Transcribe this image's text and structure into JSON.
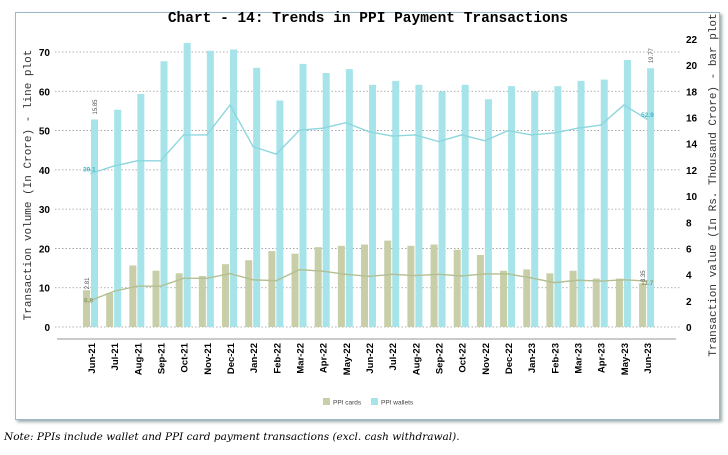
{
  "chart_data": {
    "type": "bar+line",
    "title": "Chart - 14: Trends in PPI Payment Transactions",
    "ylabel_left": "Transaction volume (In Crore) - line plot",
    "ylabel_right": "Transaction value (In Rs. Thousand Crore) - bar plot",
    "ylim_left": [
      0,
      70
    ],
    "ylim_right": [
      0,
      22
    ],
    "yticks_left": [
      0,
      10,
      20,
      30,
      40,
      50,
      60,
      70
    ],
    "yticks_right": [
      0,
      2,
      4,
      6,
      8,
      10,
      12,
      14,
      16,
      18,
      20,
      22
    ],
    "grid": true,
    "legend_position": "bottom",
    "categories": [
      "Jun-21",
      "Jul-21",
      "Aug-21",
      "Sep-21",
      "Oct-21",
      "Nov-21",
      "Dec-21",
      "Jan-22",
      "Feb-22",
      "Mar-22",
      "Apr-22",
      "May-22",
      "Jun-22",
      "Jul-22",
      "Aug-22",
      "Sep-22",
      "Oct-22",
      "Nov-22",
      "Dec-22",
      "Jan-23",
      "Feb-23",
      "Mar-23",
      "Apr-23",
      "May-23",
      "Jun-23"
    ],
    "series": [
      {
        "name": "PPI cards",
        "kind": "bar",
        "axis": "right",
        "color": "#c8cfa8",
        "values": [
          2.81,
          2.6,
          4.7,
          4.3,
          4.1,
          3.9,
          4.8,
          5.1,
          5.8,
          5.6,
          6.1,
          6.2,
          6.3,
          6.6,
          6.2,
          6.3,
          5.9,
          5.5,
          4.3,
          4.4,
          4.1,
          4.3,
          3.7,
          3.7,
          3.35
        ]
      },
      {
        "name": "PPI wallets",
        "kind": "bar",
        "axis": "right",
        "color": "#a6e4ea",
        "values": [
          15.85,
          16.6,
          17.8,
          20.3,
          21.7,
          21.1,
          21.2,
          19.8,
          17.3,
          20.1,
          19.4,
          19.7,
          18.5,
          18.8,
          18.5,
          18.0,
          18.5,
          17.4,
          18.4,
          18.0,
          18.4,
          18.8,
          18.9,
          20.4,
          19.77
        ]
      },
      {
        "kind": "line",
        "axis": "left",
        "color": "#b3bf92",
        "of": "PPI cards",
        "values": [
          6.8,
          9.1,
          10.4,
          10.4,
          12.4,
          12.4,
          13.6,
          12.0,
          11.8,
          14.6,
          14.2,
          13.4,
          12.9,
          13.4,
          13.1,
          13.4,
          13.0,
          13.5,
          13.5,
          12.5,
          11.3,
          11.9,
          11.7,
          12.0,
          11.7
        ]
      },
      {
        "kind": "line",
        "axis": "left",
        "color": "#8fd6df",
        "of": "PPI wallets",
        "values": [
          39.1,
          41.0,
          42.3,
          42.3,
          48.9,
          48.9,
          56.5,
          45.9,
          44.0,
          50.1,
          50.6,
          52.0,
          49.7,
          48.6,
          48.9,
          47.2,
          48.9,
          47.4,
          50.0,
          48.9,
          49.4,
          50.6,
          51.4,
          56.5,
          52.9
        ]
      }
    ],
    "data_labels": {
      "wallet_bar_first": "15.85",
      "wallet_bar_last": "19.77",
      "card_bar_first": "2.81",
      "card_bar_last": "3.35",
      "wallet_line_first": "39.1",
      "wallet_line_last": "52.9",
      "card_line_first": "6.8",
      "card_line_last": "11.7"
    },
    "legend": [
      "PPI cards",
      "PPI wallets"
    ]
  },
  "note": "Note: PPIs include wallet and PPI card payment transactions (excl. cash withdrawal)."
}
